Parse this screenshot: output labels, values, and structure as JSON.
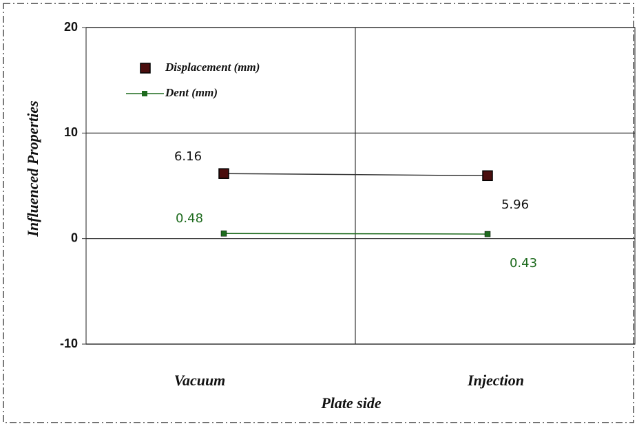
{
  "chart_data": {
    "type": "line",
    "xlabel": "Plate side",
    "ylabel": "Influenced Properties",
    "categories": [
      "Vacuum",
      "Injection"
    ],
    "series": [
      {
        "name": "Displacement (mm)",
        "color": "#4a0e0e",
        "values": [
          6.16,
          5.96
        ]
      },
      {
        "name": "Dent (mm)",
        "color": "#1e6b1e",
        "values": [
          0.48,
          0.43
        ]
      }
    ],
    "ylim": [
      -10,
      20
    ],
    "yticks": [
      -10,
      0,
      10,
      20
    ],
    "grid": true
  }
}
